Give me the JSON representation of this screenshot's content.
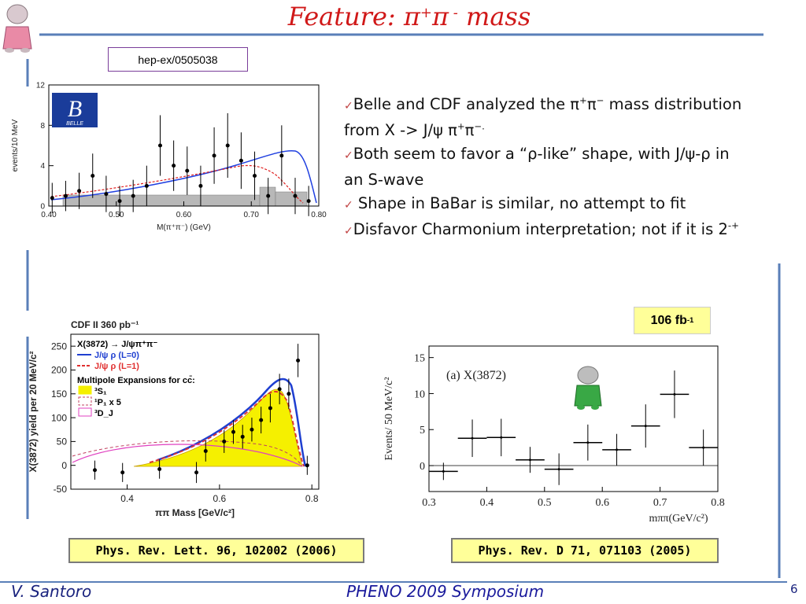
{
  "title": [
    "Feature: ",
    "π",
    "+",
    "π",
    " -",
    "  mass"
  ],
  "source": "hep-ex/0505038",
  "bullet_mark": "✓",
  "bullets": [
    [
      "Belle and CDF analyzed the π",
      {
        "sup": "+"
      },
      "π",
      {
        "sup": "−"
      },
      " mass distribution from X -> J/ψ π",
      {
        "sup": "+"
      },
      "π",
      {
        "sup": "−."
      }
    ],
    [
      "Both seem to favor a “ρ-like” shape, with J/ψ-ρ in an S-wave"
    ],
    [
      " Shape in BaBar is similar, no attempt to fit"
    ],
    [
      "Disfavor Charmonium interpretation; not if it is 2",
      {
        "sup": "-+"
      }
    ]
  ],
  "luminosity": [
    "106 fb",
    {
      "sup": "-1"
    }
  ],
  "references": [
    "Phys. Rev. Lett. 96, 102002 (2006)",
    "Phys. Rev. D 71, 071103 (2005)"
  ],
  "footer": {
    "author": "V. Santoro",
    "conference": "PHENO 2009 Symposium",
    "page": "6"
  },
  "chart_data": [
    {
      "type": "scatter",
      "logo": [
        "B",
        "BELLE"
      ],
      "xlabel": "M(π⁺π⁻) (GeV)",
      "ylabel": "events/10 MeV",
      "xlim": [
        0.4,
        0.8
      ],
      "ylim": [
        0,
        12
      ],
      "xticks": [
        {
          "value": 0.4,
          "label": "0.40"
        },
        {
          "value": 0.5,
          "label": "0.50"
        },
        {
          "value": 0.6,
          "label": "0.60"
        },
        {
          "value": 0.7,
          "label": "0.70"
        },
        {
          "value": 0.8,
          "label": "0.80"
        }
      ],
      "yticks": [
        0,
        4,
        8,
        12
      ],
      "color": "#000000",
      "x": [
        0.405,
        0.425,
        0.445,
        0.465,
        0.485,
        0.505,
        0.525,
        0.545,
        0.565,
        0.585,
        0.605,
        0.625,
        0.645,
        0.665,
        0.685,
        0.705,
        0.725,
        0.745,
        0.765,
        0.785
      ],
      "values": [
        0.8,
        1,
        1.5,
        3,
        1.2,
        0.5,
        1,
        2,
        6,
        4,
        3.5,
        2,
        5,
        6,
        4.5,
        3,
        1,
        5,
        1,
        0.5
      ],
      "errors": [
        1.5,
        1.5,
        1.8,
        2.2,
        1.8,
        1.5,
        1.6,
        2,
        3,
        2.5,
        2.4,
        2,
        2.8,
        3.2,
        2.8,
        2.4,
        1.8,
        3,
        1.8,
        1.5
      ]
    },
    {
      "type": "scatter",
      "title": "CDF II   360 pb⁻¹",
      "legend": [
        {
          "label": "X(3872) → J/ψπ⁺π⁻",
          "color": "#000000"
        },
        {
          "label": "J/ψ ρ (L=0)",
          "color": "#1f3fd0"
        },
        {
          "label": "J/ψ ρ (L=1)",
          "color": "#e03030"
        },
        {
          "label": "Multipole Expansions for cc̄:",
          "color": "#000000"
        },
        {
          "label": "³S₁",
          "color": "#f5f000"
        },
        {
          "label": "¹P₁ x 5",
          "color": "#c04060"
        },
        {
          "label": "³D_J",
          "color": "#e040c0"
        }
      ],
      "xlabel": "ππ Mass [GeV/c²]",
      "ylabel": "X(3872) yield per 20 MeV/c²",
      "xlim": [
        0.278,
        0.815
      ],
      "ylim": [
        -50,
        275
      ],
      "xticks": [
        0.4,
        0.6,
        0.8
      ],
      "yticks": [
        -50,
        0,
        50,
        100,
        150,
        200,
        250
      ],
      "color": "#000000",
      "x": [
        0.33,
        0.39,
        0.47,
        0.55,
        0.57,
        0.61,
        0.63,
        0.65,
        0.67,
        0.69,
        0.71,
        0.73,
        0.75,
        0.77,
        0.79
      ],
      "values": [
        -10,
        -15,
        -8,
        -15,
        30,
        50,
        70,
        60,
        75,
        95,
        120,
        160,
        150,
        220,
        0
      ],
      "errors": [
        20,
        20,
        20,
        22,
        22,
        24,
        25,
        25,
        25,
        28,
        30,
        32,
        32,
        35,
        20
      ]
    },
    {
      "type": "scatter",
      "annotation": "(a)  X(3872)",
      "xlabel": "mππ(GeV/c²)",
      "ylabel": "Events/ 50 MeV/c²",
      "xlim": [
        0.3,
        0.8
      ],
      "ylim": [
        -3.6,
        16.6
      ],
      "xticks": [
        0.3,
        0.4,
        0.5,
        0.6,
        0.7,
        0.8
      ],
      "yticks": [
        0,
        5,
        10,
        15
      ],
      "color": "#000000",
      "x": [
        0.325,
        0.375,
        0.425,
        0.475,
        0.525,
        0.575,
        0.625,
        0.675,
        0.725,
        0.775
      ],
      "values": [
        -0.8,
        3.8,
        3.9,
        0.8,
        -0.5,
        3.2,
        2.2,
        5.5,
        9.9,
        2.5
      ],
      "errors": [
        1.2,
        2.6,
        2.6,
        1.8,
        2.2,
        2.5,
        2.2,
        3,
        3.3,
        2.5
      ],
      "xerrors": [
        0.025,
        0.025,
        0.025,
        0.025,
        0.025,
        0.025,
        0.025,
        0.025,
        0.025,
        0.025
      ]
    }
  ]
}
